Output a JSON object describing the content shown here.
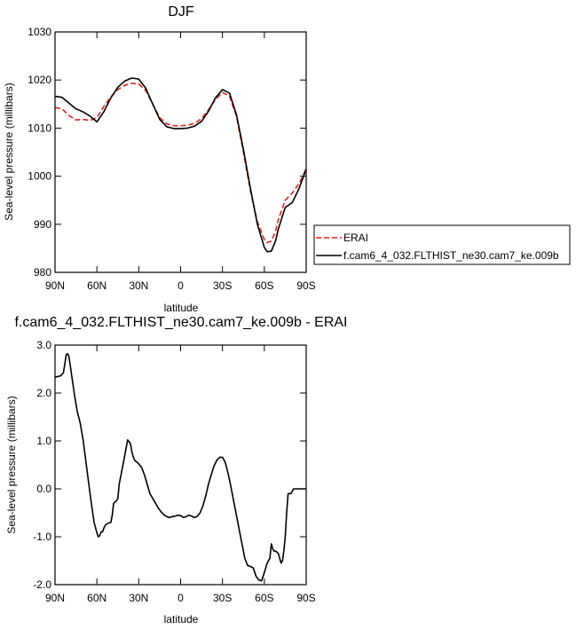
{
  "chart_data": [
    {
      "type": "line",
      "title": "DJF",
      "xlabel": "latitude",
      "ylabel": "Sea-level pressure (millibars)",
      "xlim": [
        90,
        -90
      ],
      "ylim": [
        980,
        1030
      ],
      "xticks": [
        90,
        60,
        30,
        0,
        -30,
        -60,
        -90
      ],
      "xtick_labels": [
        "90N",
        "60N",
        "30N",
        "0",
        "30S",
        "60S",
        "90S"
      ],
      "yticks": [
        980,
        990,
        1000,
        1010,
        1020,
        1030
      ],
      "ytick_labels": [
        "980",
        "990",
        "1000",
        "1010",
        "1020",
        "1030"
      ],
      "grid": false,
      "legend_position": "outside-right",
      "series": [
        {
          "name": "ERAI",
          "color": "#e3201b",
          "dash": "dashed",
          "x": [
            90,
            85,
            80,
            75,
            70,
            65,
            60,
            55,
            50,
            45,
            40,
            35,
            30,
            25,
            20,
            15,
            10,
            5,
            0,
            -5,
            -10,
            -15,
            -20,
            -25,
            -30,
            -35,
            -40,
            -45,
            -50,
            -55,
            -60,
            -62,
            -65,
            -68,
            -70,
            -75,
            -80,
            -85,
            -90
          ],
          "values": [
            1014.3,
            1014,
            1012.6,
            1011.7,
            1011.8,
            1011.6,
            1012.2,
            1014.5,
            1016.5,
            1018,
            1018.9,
            1019.3,
            1019.2,
            1017.8,
            1015,
            1012.2,
            1010.9,
            1010.5,
            1010.5,
            1010.6,
            1011,
            1012,
            1013.8,
            1016,
            1017.4,
            1016.7,
            1012.5,
            1005,
            997,
            990.5,
            986.8,
            986.2,
            986.5,
            988.5,
            991,
            995,
            996.5,
            998.5,
            1001.5
          ]
        },
        {
          "name": "f.cam6_4_032.FLTHIST_ne30.cam7_ke.009b",
          "color": "#000000",
          "dash": "solid",
          "x": [
            90,
            85,
            80,
            75,
            70,
            65,
            60,
            55,
            50,
            45,
            40,
            35,
            30,
            25,
            20,
            15,
            10,
            5,
            0,
            -5,
            -10,
            -15,
            -20,
            -25,
            -30,
            -35,
            -40,
            -45,
            -50,
            -55,
            -60,
            -62,
            -65,
            -68,
            -70,
            -75,
            -80,
            -85,
            -90
          ],
          "values": [
            1016.6,
            1016.4,
            1015.2,
            1014,
            1013.4,
            1012.5,
            1011.3,
            1013.4,
            1016.3,
            1018.5,
            1019.8,
            1020.4,
            1020.2,
            1018.3,
            1015,
            1011.8,
            1010.3,
            1009.9,
            1009.9,
            1010,
            1010.4,
            1011.4,
            1013.5,
            1016.3,
            1018,
            1017.3,
            1012.8,
            1005.5,
            997.5,
            990,
            985.2,
            984.3,
            984.4,
            986.5,
            989,
            993.5,
            994.5,
            997.5,
            1001.5
          ]
        }
      ]
    },
    {
      "type": "line",
      "title": "f.cam6_4_032.FLTHIST_ne30.cam7_ke.009b - ERAI",
      "xlabel": "latitude",
      "ylabel": "Sea-level pressure (millibars)",
      "xlim": [
        90,
        -90
      ],
      "ylim": [
        -2,
        3
      ],
      "xticks": [
        90,
        60,
        30,
        0,
        -30,
        -60,
        -90
      ],
      "xtick_labels": [
        "90N",
        "60N",
        "30N",
        "0",
        "30S",
        "60S",
        "90S"
      ],
      "yticks": [
        -2,
        -1,
        0,
        1,
        2,
        3
      ],
      "ytick_labels": [
        "-2.0",
        "-1.0",
        "0.0",
        "1.0",
        "2.0",
        "3.0"
      ],
      "grid": false,
      "series": [
        {
          "color": "#000000",
          "dash": "solid",
          "x": [
            90,
            86,
            84,
            83,
            82,
            81,
            80,
            78,
            76,
            74,
            72,
            70,
            68,
            66,
            64,
            62,
            60,
            59,
            58,
            57,
            56,
            55,
            54,
            52,
            50,
            49,
            48,
            46,
            45,
            44,
            42,
            40,
            38,
            36,
            35,
            34,
            33,
            32,
            31,
            30,
            28,
            26,
            24,
            22,
            20,
            18,
            16,
            14,
            12,
            10,
            8,
            6,
            4,
            2,
            0,
            -2,
            -4,
            -6,
            -8,
            -10,
            -12,
            -14,
            -16,
            -18,
            -20,
            -22,
            -24,
            -26,
            -28,
            -30,
            -32,
            -34,
            -36,
            -38,
            -40,
            -42,
            -44,
            -46,
            -48,
            -50,
            -52,
            -54,
            -56,
            -58,
            -60,
            -62,
            -63,
            -64,
            -65,
            -66,
            -67,
            -68,
            -69,
            -70,
            -71,
            -72,
            -73,
            -74,
            -75,
            -76,
            -77,
            -78,
            -79,
            -80,
            -81,
            -82,
            -83,
            -84,
            -85,
            -86,
            -87,
            -88,
            -89,
            -90
          ],
          "values": [
            2.33,
            2.36,
            2.42,
            2.6,
            2.8,
            2.82,
            2.76,
            2.35,
            1.95,
            1.6,
            1.38,
            1.05,
            0.6,
            0.15,
            -0.3,
            -0.7,
            -0.92,
            -1.0,
            -0.98,
            -0.9,
            -0.9,
            -0.82,
            -0.76,
            -0.72,
            -0.7,
            -0.55,
            -0.3,
            -0.25,
            -0.2,
            0.1,
            0.4,
            0.7,
            1.02,
            0.95,
            0.78,
            0.68,
            0.6,
            0.57,
            0.55,
            0.52,
            0.45,
            0.3,
            0.1,
            -0.1,
            -0.2,
            -0.3,
            -0.4,
            -0.48,
            -0.54,
            -0.58,
            -0.6,
            -0.58,
            -0.57,
            -0.55,
            -0.56,
            -0.6,
            -0.58,
            -0.55,
            -0.57,
            -0.6,
            -0.57,
            -0.5,
            -0.35,
            -0.15,
            0.1,
            0.3,
            0.48,
            0.6,
            0.66,
            0.66,
            0.55,
            0.32,
            0.05,
            -0.25,
            -0.55,
            -0.85,
            -1.15,
            -1.45,
            -1.6,
            -1.62,
            -1.65,
            -1.82,
            -1.9,
            -1.92,
            -1.75,
            -1.55,
            -1.5,
            -1.45,
            -1.15,
            -1.25,
            -1.3,
            -1.3,
            -1.32,
            -1.35,
            -1.45,
            -1.55,
            -1.5,
            -1.3,
            -1.0,
            -0.5,
            -0.1,
            -0.1,
            -0.1,
            -0.05,
            0.0,
            0.0,
            0.0,
            0.0,
            0.0,
            0.0,
            0.0,
            0.0,
            0.0,
            0.0
          ]
        }
      ]
    }
  ]
}
